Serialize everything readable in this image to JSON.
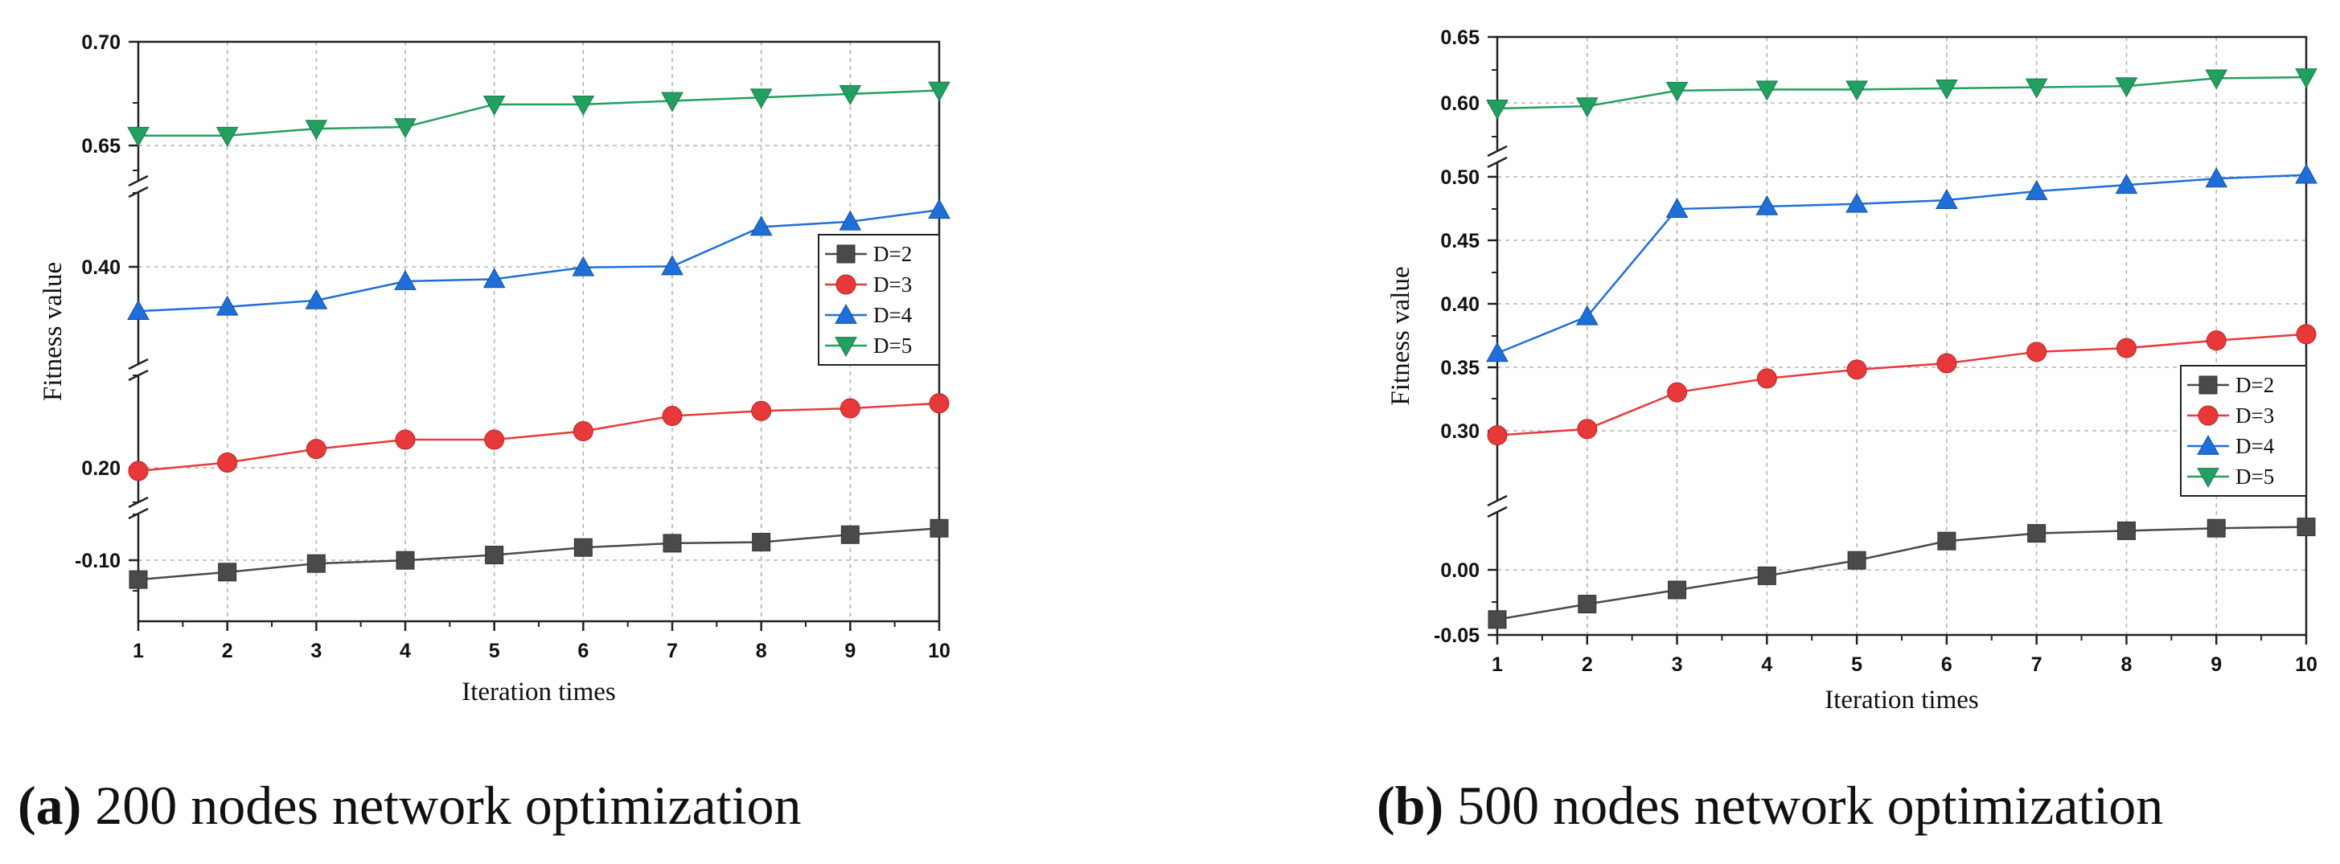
{
  "chart_data": [
    {
      "type": "line",
      "xlabel": "Iteration times",
      "ylabel": "Fitness value",
      "x": [
        1,
        2,
        3,
        4,
        5,
        6,
        7,
        8,
        9,
        10
      ],
      "xlim": [
        1,
        10
      ],
      "grid": true,
      "legend_position": "right",
      "axis_breaks": true,
      "y_ticks": [
        "-0.10",
        "0.20",
        "0.40",
        "0.65",
        "0.70"
      ],
      "series": [
        {
          "name": "D=2",
          "color": "#4a4a4a",
          "marker": "square",
          "values": [
            -0.121,
            -0.114,
            -0.106,
            -0.103,
            -0.098,
            -0.091,
            -0.087,
            -0.086,
            -0.079,
            -0.073
          ]
        },
        {
          "name": "D=3",
          "color": "#e8393a",
          "marker": "circle",
          "values": [
            0.197,
            0.207,
            0.223,
            0.234,
            0.234,
            0.244,
            0.262,
            0.268,
            0.271,
            0.277
          ]
        },
        {
          "name": "D=4",
          "color": "#1f6fd8",
          "marker": "triangle-up",
          "values": [
            0.359,
            0.363,
            0.369,
            0.387,
            0.389,
            0.4,
            0.401,
            0.438,
            0.443,
            0.454
          ]
        },
        {
          "name": "D=5",
          "color": "#22a060",
          "marker": "triangle-down",
          "values": [
            0.646,
            0.646,
            0.65,
            0.651,
            0.664,
            0.664,
            0.666,
            0.668,
            0.67,
            0.672
          ]
        }
      ]
    },
    {
      "type": "line",
      "xlabel": "Iteration times",
      "ylabel": "Fitness value",
      "x": [
        1,
        2,
        3,
        4,
        5,
        6,
        7,
        8,
        9,
        10
      ],
      "xlim": [
        1,
        10
      ],
      "grid": true,
      "legend_position": "lower-right",
      "axis_breaks": true,
      "y_ticks": [
        "-0.05",
        "0.00",
        "0.30",
        "0.35",
        "0.40",
        "0.45",
        "0.50",
        "0.60",
        "0.65"
      ],
      "series": [
        {
          "name": "D=2",
          "color": "#4a4a4a",
          "marker": "square",
          "values": [
            -0.038,
            -0.026,
            -0.015,
            -0.004,
            0.008,
            0.023,
            0.029,
            0.031,
            0.033,
            0.034
          ]
        },
        {
          "name": "D=3",
          "color": "#e8393a",
          "marker": "circle",
          "values": [
            0.296,
            0.301,
            0.33,
            0.341,
            0.348,
            0.353,
            0.362,
            0.365,
            0.371,
            0.376
          ]
        },
        {
          "name": "D=4",
          "color": "#1f6fd8",
          "marker": "triangle-up",
          "values": [
            0.361,
            0.39,
            0.475,
            0.477,
            0.479,
            0.482,
            0.489,
            0.494,
            0.499,
            0.502
          ]
        },
        {
          "name": "D=5",
          "color": "#22a060",
          "marker": "triangle-down",
          "values": [
            0.586,
            0.588,
            0.602,
            0.603,
            0.603,
            0.604,
            0.605,
            0.606,
            0.613,
            0.614
          ]
        }
      ]
    }
  ],
  "captions": [
    {
      "letter": "(a)",
      "text": " 200 nodes network optimization"
    },
    {
      "letter": "(b)",
      "text": " 500 nodes network optimization"
    }
  ]
}
